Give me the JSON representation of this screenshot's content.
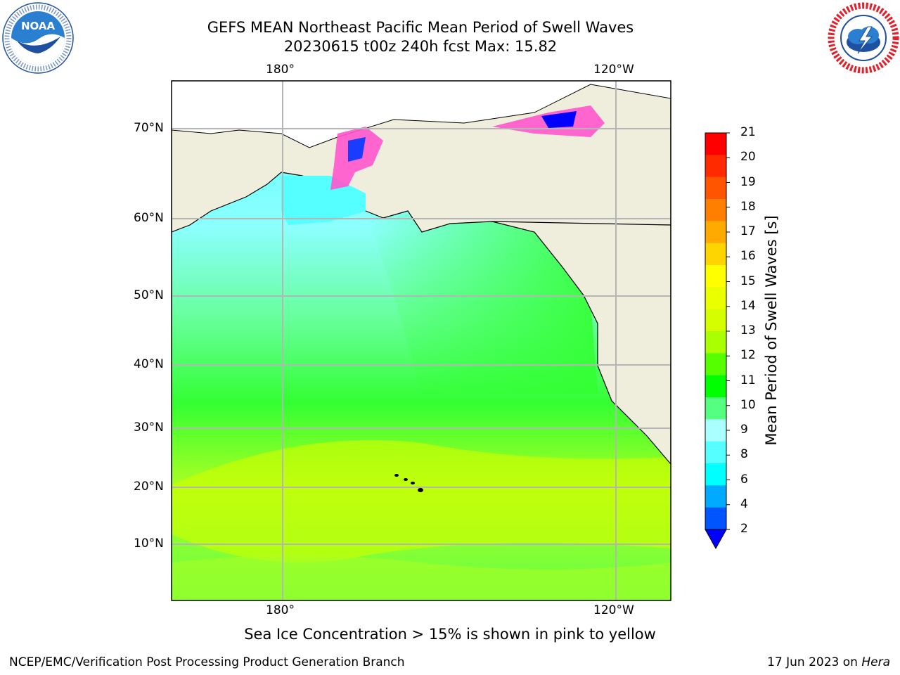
{
  "title": {
    "line1": "GEFS MEAN Northeast Pacific Mean Period of Swell Waves",
    "line2": "20230615 t00z 240h fcst   Max: 15.82"
  },
  "logos": {
    "left": "noaa-logo",
    "right": "national-weather-service-logo"
  },
  "map": {
    "top_lon_labels": [
      "180°",
      "120°W"
    ],
    "bottom_lon_labels": [
      "180°",
      "120°W"
    ],
    "lat_labels": [
      "70°N",
      "60°N",
      "50°N",
      "40°N",
      "30°N",
      "20°N",
      "10°N"
    ],
    "land_color": "#efeddc",
    "grid_color": "#b5b5b5"
  },
  "colorbar": {
    "title": "Mean Period of Swell Waves [s]",
    "ticks": [
      "21",
      "20",
      "19",
      "18",
      "17",
      "16",
      "15",
      "14",
      "13",
      "12",
      "11",
      "10",
      "9",
      "8",
      "6",
      "4",
      "2"
    ],
    "colors": [
      "#ff0000",
      "#ff2a00",
      "#ff5500",
      "#ff8000",
      "#ffaa00",
      "#ffd500",
      "#ffff00",
      "#eaff00",
      "#d5ff00",
      "#aaff00",
      "#55ff00",
      "#00ff00",
      "#55ff80",
      "#aaffff",
      "#55ffff",
      "#00ffff",
      "#00aaff",
      "#0055ff"
    ],
    "under_color": "#0000ff"
  },
  "caption": "Sea Ice Concentration > 15% is shown in pink to yellow",
  "footer": {
    "left": "NCEP/EMC/Verification Post Processing Product Generation Branch",
    "right_prefix": "17 Jun 2023 on ",
    "right_host": "Hera"
  }
}
